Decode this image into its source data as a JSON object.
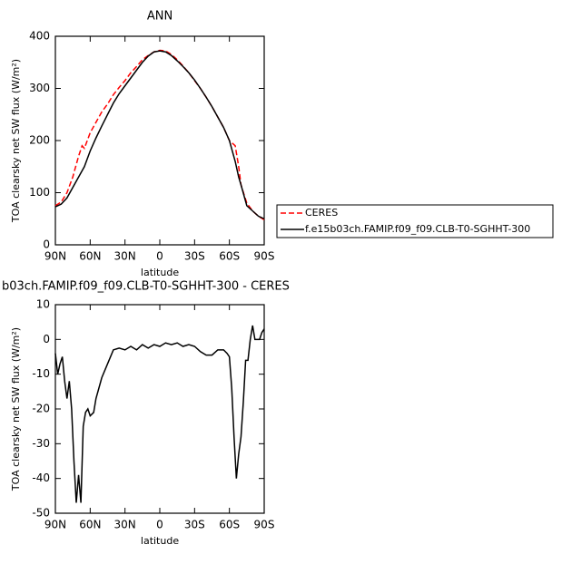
{
  "chart_data": [
    {
      "type": "line",
      "title": "ANN",
      "xlabel": "latitude",
      "ylabel": "TOA clearsky net SW flux (W/m²)",
      "x": [
        90,
        85,
        80,
        75,
        70,
        67,
        65,
        60,
        55,
        50,
        45,
        40,
        35,
        30,
        25,
        20,
        15,
        10,
        5,
        0,
        -5,
        -10,
        -15,
        -20,
        -25,
        -30,
        -35,
        -40,
        -45,
        -50,
        -55,
        -60,
        -65,
        -68,
        -70,
        -75,
        -80,
        -85,
        -90
      ],
      "series": [
        {
          "name": "CERES",
          "color": "#ff0000",
          "dashed": true,
          "values": [
            75,
            82,
            100,
            130,
            170,
            190,
            185,
            215,
            235,
            255,
            270,
            288,
            302,
            315,
            330,
            342,
            355,
            363,
            370,
            373,
            372,
            365,
            355,
            343,
            330,
            315,
            300,
            283,
            265,
            245,
            225,
            200,
            190,
            150,
            115,
            80,
            65,
            55,
            48
          ]
        },
        {
          "name": "f.e15b03ch.FAMIP.f09_f09.CLB-T0-SGHHT-300",
          "color": "#000000",
          "dashed": false,
          "values": [
            73,
            78,
            90,
            110,
            130,
            142,
            150,
            180,
            205,
            228,
            250,
            272,
            290,
            305,
            320,
            335,
            350,
            362,
            370,
            372,
            370,
            363,
            353,
            342,
            330,
            316,
            300,
            283,
            265,
            245,
            225,
            200,
            160,
            130,
            115,
            75,
            65,
            55,
            50
          ]
        }
      ],
      "xlim": [
        90,
        -90
      ],
      "xticks": [
        {
          "value": 90,
          "label": "90N"
        },
        {
          "value": 60,
          "label": "60N"
        },
        {
          "value": 30,
          "label": "30N"
        },
        0,
        {
          "value": -30,
          "label": "30S"
        },
        {
          "value": -60,
          "label": "60S"
        },
        {
          "value": -90,
          "label": "90S"
        }
      ],
      "ylim": [
        0,
        400
      ],
      "yticks": [
        0,
        100,
        200,
        300,
        400
      ],
      "legend": "right"
    },
    {
      "type": "line",
      "title": "b03ch.FAMIP.f09_f09.CLB-T0-SGHHT-300 - CERES",
      "xlabel": "latitude",
      "ylabel": "TOA clearsky net SW flux (W/m²)",
      "x": [
        90,
        88,
        86,
        84,
        82,
        80,
        78,
        76,
        74,
        72,
        70,
        68,
        66,
        64,
        62,
        60,
        57,
        55,
        50,
        45,
        40,
        35,
        30,
        25,
        20,
        15,
        10,
        5,
        0,
        -5,
        -10,
        -15,
        -20,
        -25,
        -30,
        -35,
        -40,
        -45,
        -50,
        -55,
        -58,
        -60,
        -62,
        -64,
        -66,
        -68,
        -70,
        -72,
        -74,
        -76,
        -78,
        -80,
        -82,
        -84,
        -86,
        -88,
        -90
      ],
      "values": [
        -4,
        -10,
        -7,
        -5,
        -12,
        -17,
        -12,
        -20,
        -35,
        -47,
        -39,
        -47,
        -25,
        -21,
        -20,
        -22,
        -21,
        -17,
        -11,
        -7,
        -3,
        -2.5,
        -3,
        -2,
        -3,
        -1.5,
        -2.5,
        -1.5,
        -2,
        -1,
        -1.5,
        -1,
        -2,
        -1.5,
        -2,
        -3.5,
        -4.5,
        -4.5,
        -3,
        -3,
        -4,
        -5,
        -14,
        -28,
        -40,
        -33,
        -28,
        -18,
        -6,
        -6,
        0,
        4,
        0,
        0,
        0,
        2,
        3
      ],
      "color": "#000000",
      "xlim": [
        90,
        -90
      ],
      "xticks": [
        {
          "value": 90,
          "label": "90N"
        },
        {
          "value": 60,
          "label": "60N"
        },
        {
          "value": 30,
          "label": "30N"
        },
        0,
        {
          "value": -30,
          "label": "30S"
        },
        {
          "value": -60,
          "label": "60S"
        },
        {
          "value": -90,
          "label": "90S"
        }
      ],
      "ylim": [
        -50,
        10
      ],
      "yticks": [
        -50,
        -40,
        -30,
        -20,
        -10,
        0,
        10
      ]
    }
  ]
}
